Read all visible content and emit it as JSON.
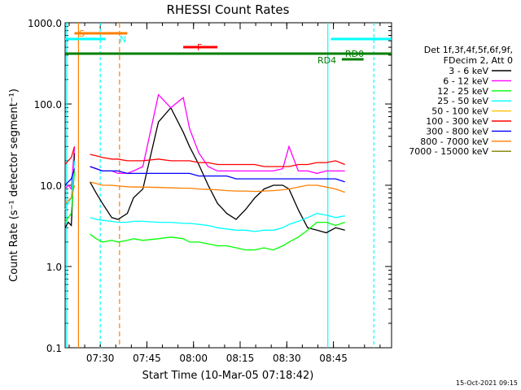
{
  "chart_data": {
    "type": "line",
    "title": "RHESSI Count Rates",
    "xlabel": "Start Time (10-Mar-05 07:18:42)",
    "ylabel": "Count Rate (s⁻¹ detector segment⁻¹)",
    "yscale": "log",
    "ylim": [
      0.1,
      1000
    ],
    "xlim_minutes": [
      0,
      105
    ],
    "x_ticks": [
      {
        "label": "07:30",
        "t": 11.3
      },
      {
        "label": "07:45",
        "t": 26.3
      },
      {
        "label": "08:00",
        "t": 41.3
      },
      {
        "label": "08:15",
        "t": 56.3
      },
      {
        "label": "08:30",
        "t": 71.3
      },
      {
        "label": "08:45",
        "t": 86.3
      }
    ],
    "y_ticks": [
      "0.1",
      "1.0",
      "10.0",
      "100.0",
      "1000.0"
    ],
    "legend_header": [
      "Det 1f,3f,4f,5f,6f,9f,",
      "FDecim 2, Att 0"
    ],
    "legend_position": "right",
    "series": [
      {
        "name": "3 - 6 keV",
        "color": "#000000",
        "values": [
          3.0,
          3.5,
          3.2,
          25,
          null,
          null,
          null,
          null,
          11,
          8,
          6,
          4,
          3.8,
          4.5,
          7,
          9,
          60,
          90,
          45,
          30,
          18,
          10,
          6,
          4.5,
          3.8,
          5,
          7,
          9,
          10,
          10,
          9,
          5,
          3,
          2.8,
          2.6,
          3,
          2.8
        ]
      },
      {
        "name": "6 - 12 keV",
        "color": "#ff00ff",
        "values": [
          9,
          10,
          9,
          30,
          null,
          null,
          null,
          null,
          17,
          16,
          15,
          15,
          14,
          14,
          15,
          17,
          130,
          90,
          120,
          50,
          25,
          17,
          15,
          15,
          15,
          15,
          15,
          15,
          15,
          16,
          30,
          15,
          15,
          14,
          15,
          15,
          15
        ]
      },
      {
        "name": "12 - 25 keV",
        "color": "#00ff00",
        "values": [
          3.5,
          4,
          4.5,
          15,
          null,
          null,
          null,
          null,
          2.5,
          2.2,
          2.0,
          2.1,
          2.0,
          2.1,
          2.2,
          2.1,
          2.2,
          2.3,
          2.2,
          2.0,
          2.0,
          1.9,
          1.8,
          1.8,
          1.7,
          1.6,
          1.6,
          1.7,
          1.6,
          1.8,
          2.0,
          2.3,
          2.8,
          3.5,
          3.5,
          3.2,
          3.5
        ]
      },
      {
        "name": "25 - 50 keV",
        "color": "#00ffff",
        "values": [
          5,
          6,
          7,
          20,
          null,
          null,
          null,
          null,
          4.0,
          3.8,
          3.7,
          3.6,
          3.5,
          3.5,
          3.6,
          3.6,
          3.5,
          3.5,
          3.4,
          3.4,
          3.3,
          3.2,
          3.0,
          2.9,
          2.8,
          2.8,
          2.7,
          2.8,
          2.8,
          3.0,
          3.3,
          3.6,
          4.0,
          4.5,
          4.3,
          4.0,
          4.2
        ]
      },
      {
        "name": "50 - 100 keV",
        "color": "#ffc000",
        "values": [
          null,
          null,
          null,
          null,
          null,
          null,
          null,
          null,
          null,
          null,
          null,
          null,
          null,
          null,
          null,
          null,
          null,
          null,
          null,
          null,
          null,
          null,
          null,
          null,
          null,
          null,
          null,
          null,
          null,
          null,
          null,
          null,
          null,
          null,
          null,
          null,
          null
        ]
      },
      {
        "name": "100 - 300 keV",
        "color": "#ff0000",
        "values": [
          18,
          20,
          22,
          30,
          null,
          null,
          null,
          null,
          24,
          23,
          22,
          21,
          21,
          20,
          20,
          20,
          21,
          20,
          20,
          20,
          19,
          19,
          18,
          18,
          18,
          18,
          18,
          17,
          17,
          17,
          17,
          18,
          18,
          19,
          19,
          20,
          18
        ]
      },
      {
        "name": "300 - 800 keV",
        "color": "#0000ff",
        "values": [
          10,
          11,
          12,
          16,
          null,
          null,
          null,
          null,
          17,
          16,
          15,
          15,
          15,
          14,
          14,
          14,
          14,
          14,
          14,
          14,
          13,
          13,
          13,
          13,
          12,
          12,
          12,
          12,
          12,
          12,
          12,
          12,
          12,
          12,
          12,
          12,
          11
        ]
      },
      {
        "name": "800 - 7000 keV",
        "color": "#ff7f00",
        "values": [
          6,
          6.5,
          7,
          10,
          null,
          null,
          null,
          null,
          11,
          10.5,
          10,
          10,
          9.8,
          9.6,
          9.5,
          9.5,
          9.4,
          9.3,
          9.2,
          9.2,
          9.0,
          8.9,
          8.8,
          8.6,
          8.5,
          8.5,
          8.4,
          8.5,
          8.6,
          8.8,
          9.0,
          9.5,
          10,
          10,
          9.5,
          9,
          8.2
        ]
      },
      {
        "name": "7000 - 15000 keV",
        "color": "#7f7f00",
        "values": [
          null,
          null,
          null,
          null,
          null,
          null,
          null,
          null,
          null,
          null,
          null,
          null,
          null,
          null,
          null,
          null,
          null,
          null,
          null,
          null,
          null,
          null,
          null,
          null,
          null,
          null,
          null,
          null,
          null,
          null,
          null,
          null,
          null,
          null,
          null,
          null,
          null
        ]
      }
    ],
    "x_minutes": [
      0,
      1,
      2,
      3,
      4,
      5,
      6,
      7,
      8,
      10,
      12,
      15,
      17,
      20,
      22,
      25,
      30,
      34,
      38,
      40,
      43,
      46,
      49,
      52,
      55,
      58,
      61,
      64,
      67,
      70,
      72,
      75,
      78,
      81,
      84,
      87,
      90
    ],
    "markers": {
      "S": {
        "label": "S",
        "color": "#ff7f00",
        "start": 3.0,
        "end": 20.0
      },
      "N": {
        "label": "N",
        "color": "#00ffff",
        "start": 0,
        "end": 13.0
      },
      "F": {
        "label": "F",
        "color": "#ff0000",
        "start": 38.0,
        "end": 49.0
      },
      "RD0": {
        "label": "RD0",
        "color": "#007f00",
        "start": 0,
        "end": 105
      },
      "RD4": {
        "label": "RD4",
        "color": "#007f00",
        "start": 89.0,
        "end": 96.0
      },
      "N2": {
        "label": "",
        "color": "#00ffff",
        "start": 85.5,
        "end": 105
      }
    }
  },
  "footer": {
    "date": "15-Oct-2021 09:15"
  }
}
